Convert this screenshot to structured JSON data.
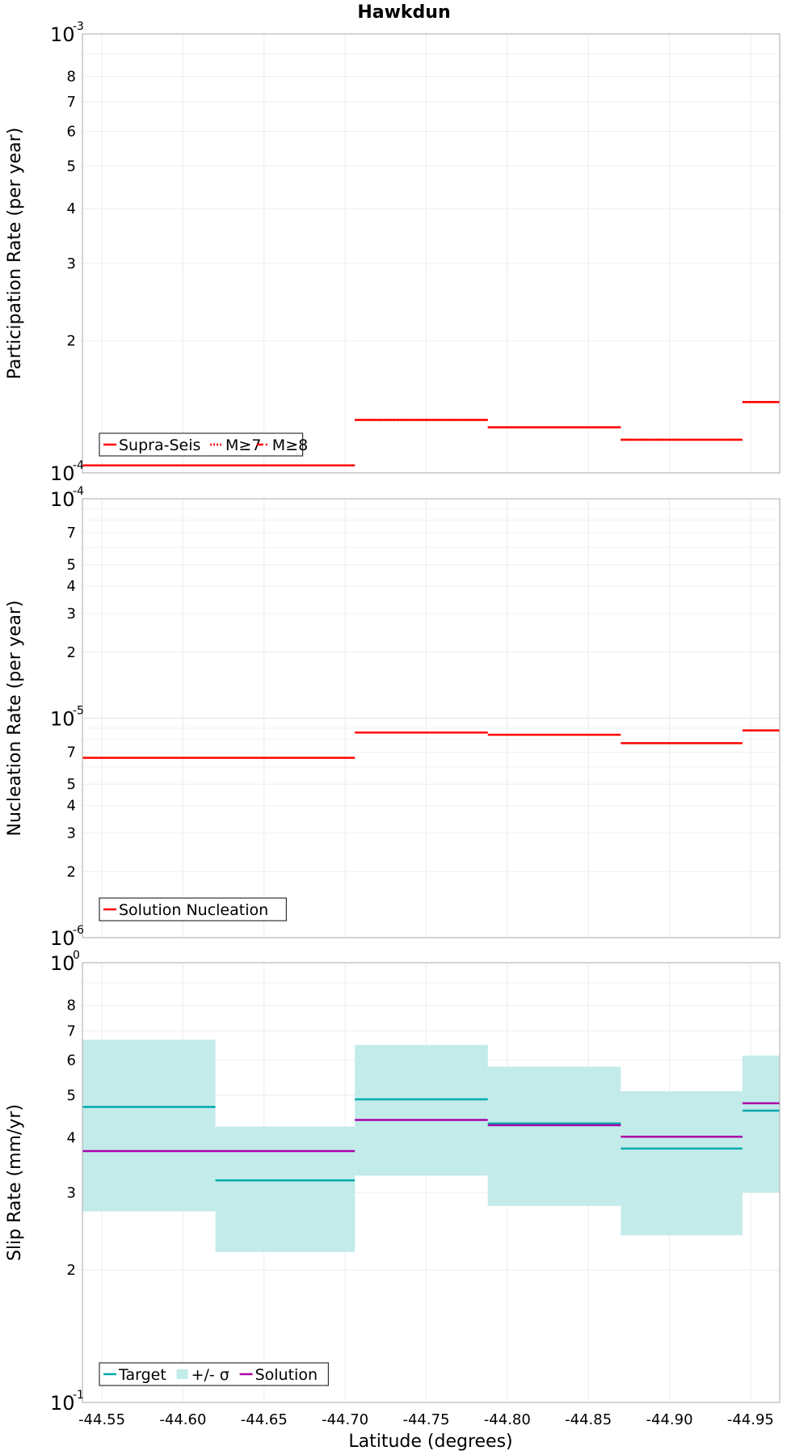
{
  "chart_data": {
    "title": "Hawkdun",
    "xlabel": "Latitude (degrees)",
    "x_ticks": [
      {
        "value": -44.55,
        "label": "-44.55"
      },
      {
        "value": -44.6,
        "label": "-44.60"
      },
      {
        "value": -44.65,
        "label": "-44.65"
      },
      {
        "value": -44.7,
        "label": "-44.70"
      },
      {
        "value": -44.75,
        "label": "-44.75"
      },
      {
        "value": -44.8,
        "label": "-44.80"
      },
      {
        "value": -44.85,
        "label": "-44.85"
      },
      {
        "value": -44.9,
        "label": "-44.90"
      },
      {
        "value": -44.95,
        "label": "-44.95"
      }
    ],
    "xlim": [
      -44.538,
      -44.968
    ],
    "grid": true,
    "panels": [
      {
        "type": "line",
        "ylabel": "Participation Rate (per year)",
        "yscale": "log",
        "ylim": [
          0.0001,
          0.001
        ],
        "major_ticks": [
          {
            "value": 0.0001,
            "base": "10",
            "exp": "-4"
          },
          {
            "value": 0.001,
            "base": "10",
            "exp": "-3"
          }
        ],
        "minor_ticks": [
          {
            "value": 0.0002,
            "label": "2"
          },
          {
            "value": 0.0003,
            "label": "3"
          },
          {
            "value": 0.0004,
            "label": "4"
          },
          {
            "value": 0.0005,
            "label": "5"
          },
          {
            "value": 0.0006,
            "label": "6"
          },
          {
            "value": 0.0007,
            "label": "7"
          },
          {
            "value": 0.0008,
            "label": "8"
          }
        ],
        "legend": {
          "position": "bottom-left",
          "entries": [
            {
              "label": "Supra-Seis",
              "style": "solid",
              "color": "#ff0000"
            },
            {
              "label": "M≥7",
              "style": "dotted",
              "color": "#ff0000"
            },
            {
              "label": "M≥8",
              "style": "dashdot",
              "color": "#ff0000"
            }
          ]
        },
        "series": [
          {
            "name": "Supra-Seis",
            "color": "#ff0000",
            "style": "solid",
            "segments": [
              {
                "x0": -44.538,
                "x1": -44.706,
                "y": 0.000104
              },
              {
                "x0": -44.706,
                "x1": -44.788,
                "y": 0.000132
              },
              {
                "x0": -44.788,
                "x1": -44.87,
                "y": 0.000127
              },
              {
                "x0": -44.87,
                "x1": -44.945,
                "y": 0.000119
              },
              {
                "x0": -44.945,
                "x1": -44.968,
                "y": 0.000145
              }
            ]
          },
          {
            "name": "M≥7",
            "color": "#ff0000",
            "style": "dotted",
            "segments": [
              {
                "x0": -44.538,
                "x1": -44.706,
                "y": 0.000104
              },
              {
                "x0": -44.706,
                "x1": -44.788,
                "y": 0.000132
              },
              {
                "x0": -44.788,
                "x1": -44.87,
                "y": 0.000127
              },
              {
                "x0": -44.87,
                "x1": -44.945,
                "y": 0.000119
              },
              {
                "x0": -44.945,
                "x1": -44.968,
                "y": 0.000145
              }
            ]
          }
        ]
      },
      {
        "type": "line",
        "ylabel": "Nucleation Rate (per year)",
        "yscale": "log",
        "ylim": [
          1e-06,
          0.0001
        ],
        "major_ticks": [
          {
            "value": 1e-06,
            "base": "10",
            "exp": "-6"
          },
          {
            "value": 1e-05,
            "base": "10",
            "exp": "-5"
          },
          {
            "value": 0.0001,
            "base": "10",
            "exp": "-4"
          }
        ],
        "minor_ticks": [
          {
            "value": 2e-06,
            "label": "2"
          },
          {
            "value": 3e-06,
            "label": "3"
          },
          {
            "value": 4e-06,
            "label": "4"
          },
          {
            "value": 5e-06,
            "label": "5"
          },
          {
            "value": 7e-06,
            "label": "7"
          },
          {
            "value": 2e-05,
            "label": "2"
          },
          {
            "value": 3e-05,
            "label": "3"
          },
          {
            "value": 4e-05,
            "label": "4"
          },
          {
            "value": 5e-05,
            "label": "5"
          },
          {
            "value": 7e-05,
            "label": "7"
          }
        ],
        "legend": {
          "position": "bottom-left",
          "entries": [
            {
              "label": "Solution Nucleation",
              "style": "solid",
              "color": "#ff0000"
            }
          ]
        },
        "series": [
          {
            "name": "Solution Nucleation",
            "color": "#ff0000",
            "style": "solid",
            "segments": [
              {
                "x0": -44.538,
                "x1": -44.706,
                "y": 6.6e-06
              },
              {
                "x0": -44.706,
                "x1": -44.788,
                "y": 8.6e-06
              },
              {
                "x0": -44.788,
                "x1": -44.87,
                "y": 8.4e-06
              },
              {
                "x0": -44.87,
                "x1": -44.945,
                "y": 7.7e-06
              },
              {
                "x0": -44.945,
                "x1": -44.968,
                "y": 8.8e-06
              }
            ]
          }
        ]
      },
      {
        "type": "line",
        "ylabel": "Slip Rate (mm/yr)",
        "yscale": "log",
        "ylim": [
          0.1,
          1
        ],
        "major_ticks": [
          {
            "value": 0.1,
            "base": "10",
            "exp": "-1"
          },
          {
            "value": 1,
            "base": "10",
            "exp": "0"
          }
        ],
        "minor_ticks": [
          {
            "value": 0.2,
            "label": "2"
          },
          {
            "value": 0.3,
            "label": "3"
          },
          {
            "value": 0.4,
            "label": "4"
          },
          {
            "value": 0.5,
            "label": "5"
          },
          {
            "value": 0.6,
            "label": "6"
          },
          {
            "value": 0.7,
            "label": "7"
          },
          {
            "value": 0.8,
            "label": "8"
          }
        ],
        "legend": {
          "position": "bottom-left",
          "entries": [
            {
              "label": "Target",
              "style": "solid",
              "color": "#00aaaa"
            },
            {
              "label": "+/- σ",
              "style": "band",
              "color": "#c2ebea"
            },
            {
              "label": "Solution",
              "style": "solid",
              "color": "#aa00aa"
            }
          ]
        },
        "bands": [
          {
            "x0": -44.538,
            "x1": -44.62,
            "lo": 0.272,
            "hi": 0.668
          },
          {
            "x0": -44.62,
            "x1": -44.706,
            "lo": 0.22,
            "hi": 0.424
          },
          {
            "x0": -44.706,
            "x1": -44.788,
            "lo": 0.328,
            "hi": 0.65
          },
          {
            "x0": -44.788,
            "x1": -44.87,
            "lo": 0.28,
            "hi": 0.58
          },
          {
            "x0": -44.87,
            "x1": -44.945,
            "lo": 0.24,
            "hi": 0.51
          },
          {
            "x0": -44.945,
            "x1": -44.968,
            "lo": 0.3,
            "hi": 0.615
          }
        ],
        "series": [
          {
            "name": "Target",
            "color": "#00aaaa",
            "style": "solid",
            "segments": [
              {
                "x0": -44.538,
                "x1": -44.62,
                "y": 0.47
              },
              {
                "x0": -44.62,
                "x1": -44.706,
                "y": 0.32
              },
              {
                "x0": -44.706,
                "x1": -44.788,
                "y": 0.489
              },
              {
                "x0": -44.788,
                "x1": -44.87,
                "y": 0.431
              },
              {
                "x0": -44.87,
                "x1": -44.945,
                "y": 0.378
              },
              {
                "x0": -44.945,
                "x1": -44.968,
                "y": 0.461
              }
            ]
          },
          {
            "name": "Solution",
            "color": "#aa00aa",
            "style": "solid",
            "segments": [
              {
                "x0": -44.538,
                "x1": -44.706,
                "y": 0.373
              },
              {
                "x0": -44.706,
                "x1": -44.788,
                "y": 0.439
              },
              {
                "x0": -44.788,
                "x1": -44.87,
                "y": 0.427
              },
              {
                "x0": -44.87,
                "x1": -44.945,
                "y": 0.402
              },
              {
                "x0": -44.945,
                "x1": -44.968,
                "y": 0.479
              }
            ]
          }
        ]
      }
    ]
  }
}
